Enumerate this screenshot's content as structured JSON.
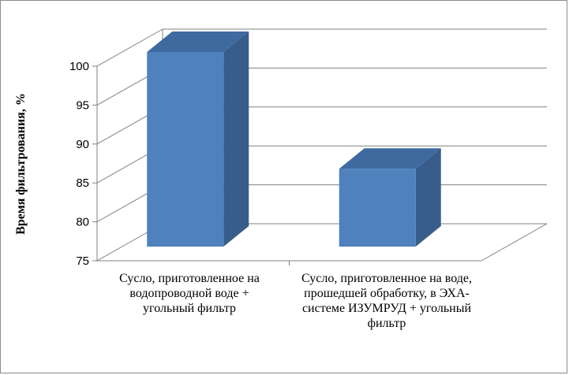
{
  "chart_data": {
    "type": "bar",
    "title": "",
    "xlabel": "",
    "ylabel": "Время фильтрования, %",
    "ylim": [
      75,
      100
    ],
    "yticks": [
      "100",
      "95",
      "90",
      "85",
      "80",
      "75"
    ],
    "categories": [
      "Сусло, приготовленное на водопроводной воде + угольный фильтр",
      "Сусло, приготовленное на воде, прошедшей обработку, в ЭХА-системе ИЗУМРУД + угольный фильтр"
    ],
    "values": [
      100,
      85
    ],
    "grid": true,
    "legend": "none",
    "colors": {
      "front": "#4f81bd",
      "side": "#385d8a",
      "top": "#3e6aa0",
      "grid": "#808080"
    }
  }
}
